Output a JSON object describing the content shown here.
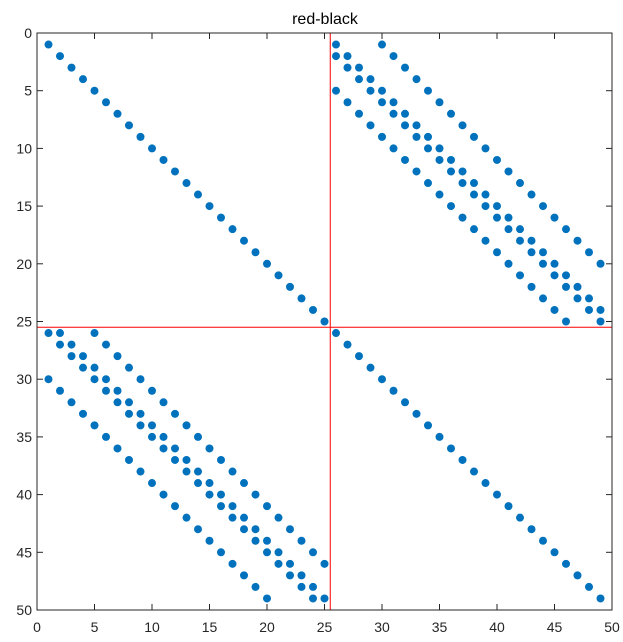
{
  "chart_data": {
    "type": "scatter",
    "title": "red-black",
    "xlabel": "",
    "ylabel": "",
    "xlim": [
      0,
      50
    ],
    "ylim": [
      0,
      50
    ],
    "y_reversed": true,
    "grid": false,
    "legend": "none",
    "xticks": [
      0,
      5,
      10,
      15,
      20,
      25,
      30,
      35,
      40,
      45,
      50
    ],
    "yticks": [
      0,
      5,
      10,
      15,
      20,
      25,
      30,
      35,
      40,
      45,
      50
    ],
    "marker_color": "#0072BD",
    "divider_color": "#FF0000",
    "divider_x": 25.5,
    "divider_y": 25.5,
    "diagonal_blocks": [
      {
        "rows": [
          1,
          25
        ],
        "cols": [
          1,
          25
        ]
      },
      {
        "rows": [
          26,
          49
        ],
        "cols": [
          26,
          49
        ]
      }
    ],
    "offdiagonal_blocks": [
      {
        "rows": [
          1,
          25
        ],
        "cols": [
          26,
          49
        ],
        "col_offset": 25,
        "couplings": [
          -4,
          -1,
          0,
          4
        ]
      },
      {
        "rows": [
          26,
          49
        ],
        "cols": [
          1,
          25
        ],
        "row_offset": 25,
        "couplings": [
          -4,
          0,
          1,
          4
        ]
      }
    ]
  }
}
